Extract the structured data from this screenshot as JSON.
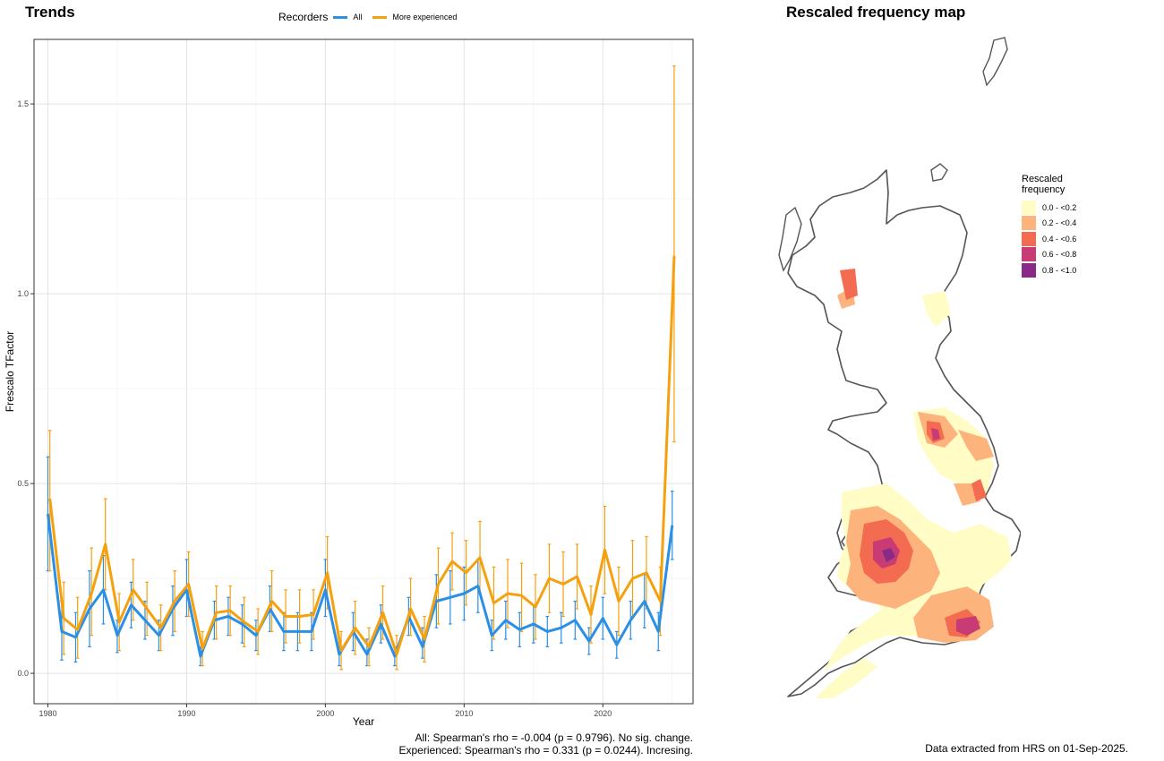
{
  "left": {
    "title": "Trends",
    "legend": {
      "label": "Recorders",
      "items": [
        {
          "name": "All",
          "color": "#2b8fe6"
        },
        {
          "name": "More experienced",
          "color": "#f5a10f"
        }
      ]
    },
    "captions": [
      "All: Spearman's rho = -0.004 (p = 0.9796). No sig. change.",
      "Experienced: Spearman's rho = 0.331 (p = 0.0244). Incresing."
    ]
  },
  "chart_data": {
    "type": "line",
    "xlabel": "Year",
    "ylabel": "Frescalo TFactor",
    "xlim": [
      1979,
      2026.5
    ],
    "ylim": [
      -0.08,
      1.67
    ],
    "xticks": [
      1980,
      1990,
      2000,
      2010,
      2020
    ],
    "yticks": [
      0.0,
      0.5,
      1.0,
      1.5
    ],
    "ytick_labels": [
      "0.0",
      "0.5",
      "1.0",
      "1.5"
    ],
    "grid": true,
    "legend_position": "top",
    "x": [
      1980,
      1981,
      1982,
      1983,
      1984,
      1985,
      1986,
      1987,
      1988,
      1989,
      1990,
      1991,
      1992,
      1993,
      1994,
      1995,
      1996,
      1997,
      1998,
      1999,
      2000,
      2001,
      2002,
      2003,
      2004,
      2005,
      2006,
      2007,
      2008,
      2009,
      2010,
      2011,
      2012,
      2013,
      2014,
      2015,
      2016,
      2017,
      2018,
      2019,
      2020,
      2021,
      2022,
      2023,
      2024,
      2025
    ],
    "series": [
      {
        "name": "All",
        "color": "#2b8fe6",
        "values": [
          0.42,
          0.11,
          0.095,
          0.17,
          0.22,
          0.1,
          0.18,
          0.14,
          0.1,
          0.17,
          0.22,
          0.045,
          0.14,
          0.15,
          0.13,
          0.1,
          0.17,
          0.11,
          0.11,
          0.11,
          0.22,
          0.05,
          0.11,
          0.05,
          0.13,
          0.045,
          0.15,
          0.07,
          0.19,
          0.2,
          0.21,
          0.23,
          0.1,
          0.14,
          0.115,
          0.13,
          0.11,
          0.12,
          0.14,
          0.085,
          0.145,
          0.075,
          0.14,
          0.19,
          0.11,
          0.39
        ],
        "lower": [
          0.27,
          0.035,
          0.03,
          0.07,
          0.13,
          0.055,
          0.12,
          0.09,
          0.06,
          0.1,
          0.15,
          0.02,
          0.09,
          0.1,
          0.08,
          0.06,
          0.11,
          0.06,
          0.06,
          0.06,
          0.15,
          0.02,
          0.06,
          0.02,
          0.08,
          0.02,
          0.1,
          0.04,
          0.12,
          0.13,
          0.14,
          0.16,
          0.06,
          0.09,
          0.07,
          0.08,
          0.07,
          0.08,
          0.09,
          0.05,
          0.09,
          0.04,
          0.09,
          0.12,
          0.06,
          0.3
        ],
        "upper": [
          0.57,
          0.19,
          0.16,
          0.27,
          0.31,
          0.14,
          0.24,
          0.19,
          0.14,
          0.23,
          0.3,
          0.07,
          0.19,
          0.2,
          0.18,
          0.14,
          0.23,
          0.16,
          0.16,
          0.16,
          0.3,
          0.08,
          0.16,
          0.09,
          0.18,
          0.07,
          0.2,
          0.12,
          0.26,
          0.27,
          0.28,
          0.3,
          0.14,
          0.19,
          0.16,
          0.18,
          0.15,
          0.16,
          0.19,
          0.12,
          0.2,
          0.11,
          0.19,
          0.26,
          0.16,
          0.48
        ]
      },
      {
        "name": "More experienced",
        "color": "#f5a10f",
        "values": [
          0.46,
          0.145,
          0.115,
          0.21,
          0.34,
          0.135,
          0.22,
          0.17,
          0.12,
          0.19,
          0.235,
          0.065,
          0.16,
          0.165,
          0.135,
          0.11,
          0.19,
          0.15,
          0.15,
          0.155,
          0.265,
          0.06,
          0.12,
          0.07,
          0.16,
          0.05,
          0.17,
          0.09,
          0.235,
          0.295,
          0.265,
          0.305,
          0.185,
          0.21,
          0.205,
          0.175,
          0.25,
          0.235,
          0.255,
          0.155,
          0.325,
          0.19,
          0.25,
          0.265,
          0.19,
          1.1
        ],
        "lower": [
          0.27,
          0.05,
          0.04,
          0.1,
          0.22,
          0.06,
          0.14,
          0.1,
          0.06,
          0.11,
          0.15,
          0.02,
          0.09,
          0.1,
          0.07,
          0.05,
          0.11,
          0.08,
          0.08,
          0.09,
          0.17,
          0.01,
          0.05,
          0.02,
          0.09,
          0.01,
          0.1,
          0.03,
          0.13,
          0.22,
          0.18,
          0.21,
          0.09,
          0.12,
          0.11,
          0.09,
          0.16,
          0.15,
          0.17,
          0.08,
          0.21,
          0.1,
          0.15,
          0.17,
          0.1,
          0.61
        ],
        "upper": [
          0.64,
          0.24,
          0.2,
          0.33,
          0.46,
          0.21,
          0.3,
          0.24,
          0.18,
          0.27,
          0.32,
          0.11,
          0.23,
          0.23,
          0.2,
          0.17,
          0.27,
          0.22,
          0.22,
          0.22,
          0.36,
          0.11,
          0.19,
          0.12,
          0.23,
          0.1,
          0.25,
          0.15,
          0.33,
          0.37,
          0.35,
          0.4,
          0.28,
          0.3,
          0.29,
          0.26,
          0.34,
          0.32,
          0.34,
          0.23,
          0.44,
          0.28,
          0.35,
          0.36,
          0.28,
          1.6
        ]
      }
    ]
  },
  "right": {
    "title": "Rescaled frequency map",
    "legend_title_line1": "Rescaled",
    "legend_title_line2": "frequency",
    "legend_items": [
      {
        "label": "0.0 - <0.2",
        "color": "#fffcc5"
      },
      {
        "label": "0.2 - <0.4",
        "color": "#fdb47c"
      },
      {
        "label": "0.4 - <0.6",
        "color": "#f36b50"
      },
      {
        "label": "0.6 - <0.8",
        "color": "#c83b74"
      },
      {
        "label": "0.8 - <1.0",
        "color": "#8a2a87"
      }
    ],
    "caption": "Data extracted from HRS on 01-Sep-2025."
  }
}
